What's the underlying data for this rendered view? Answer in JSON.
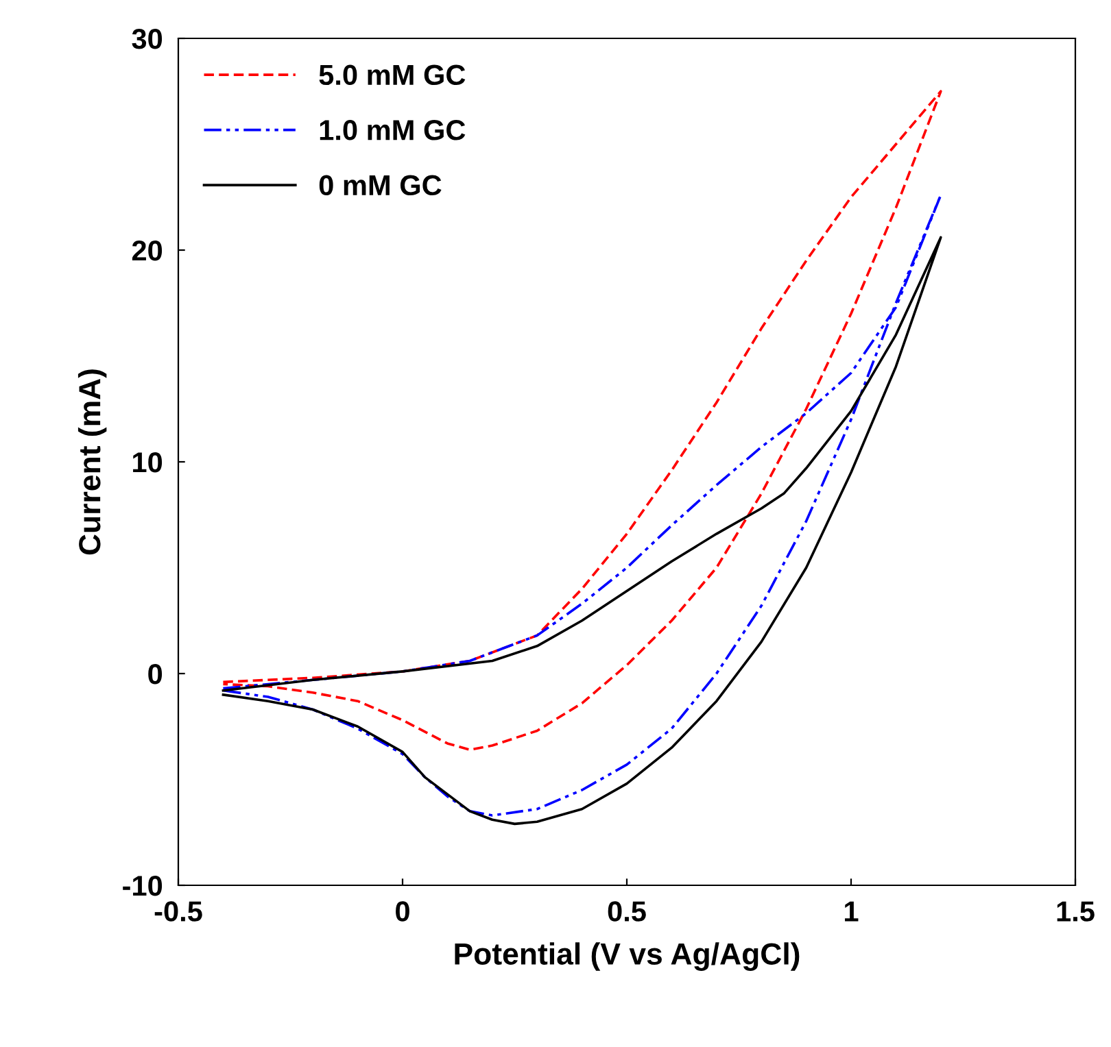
{
  "chart_data": {
    "type": "line",
    "xlabel": "Potential (V vs Ag/AgCl)",
    "ylabel": "Current (mA)",
    "xlim": [
      -0.5,
      1.5
    ],
    "xticks": [
      -0.5,
      0,
      0.5,
      1,
      1.5
    ],
    "ylim": [
      -10,
      30
    ],
    "yticks": [
      -10,
      0,
      10,
      20,
      30
    ],
    "grid": false,
    "legend": "top left",
    "marker": "none",
    "series": [
      {
        "name": "5.0 mM GC",
        "color": "#ff0000",
        "line_style": "dashed",
        "x": [
          -0.4,
          -0.2,
          0,
          0.15,
          0.3,
          0.4,
          0.5,
          0.6,
          0.7,
          0.8,
          0.9,
          1.0,
          1.1,
          1.2,
          1.1,
          1.0,
          0.9,
          0.8,
          0.7,
          0.6,
          0.5,
          0.4,
          0.3,
          0.2,
          0.15,
          0.1,
          0.0,
          -0.1,
          -0.2,
          -0.3,
          -0.4
        ],
        "values": [
          -0.4,
          -0.2,
          0.1,
          0.6,
          1.8,
          4.0,
          6.6,
          9.6,
          12.8,
          16.3,
          19.5,
          22.5,
          25.0,
          27.5,
          22,
          17,
          12.5,
          8.5,
          5.0,
          2.5,
          0.4,
          -1.4,
          -2.7,
          -3.4,
          -3.6,
          -3.3,
          -2.2,
          -1.3,
          -0.9,
          -0.6,
          -0.5
        ]
      },
      {
        "name": "1.0 mM GC",
        "color": "#0000ff",
        "line_style": "dashdot",
        "x": [
          -0.4,
          -0.2,
          0,
          0.15,
          0.3,
          0.4,
          0.5,
          0.6,
          0.7,
          0.8,
          0.9,
          1.0,
          1.1,
          1.2,
          1.1,
          1.0,
          0.9,
          0.8,
          0.7,
          0.6,
          0.5,
          0.4,
          0.3,
          0.2,
          0.15,
          0.1,
          0.05,
          0,
          -0.1,
          -0.2,
          -0.3,
          -0.4
        ],
        "values": [
          -0.7,
          -0.3,
          0.1,
          0.6,
          1.8,
          3.3,
          5.0,
          7.0,
          8.9,
          10.7,
          12.3,
          14.2,
          17.3,
          22.6,
          17.5,
          12,
          7.2,
          3.2,
          0,
          -2.6,
          -4.3,
          -5.5,
          -6.4,
          -6.7,
          -6.5,
          -5.8,
          -4.9,
          -3.8,
          -2.6,
          -1.7,
          -1.1,
          -0.8
        ]
      },
      {
        "name": "0 mM GC",
        "color": "#000000",
        "line_style": "solid",
        "x": [
          -0.4,
          -0.2,
          0,
          0.2,
          0.3,
          0.4,
          0.5,
          0.6,
          0.7,
          0.8,
          0.85,
          0.9,
          1.0,
          1.1,
          1.2,
          1.1,
          1.0,
          0.9,
          0.8,
          0.7,
          0.6,
          0.5,
          0.4,
          0.3,
          0.25,
          0.2,
          0.15,
          0.1,
          0.05,
          0,
          -0.1,
          -0.2,
          -0.3,
          -0.4
        ],
        "values": [
          -0.8,
          -0.3,
          0.1,
          0.6,
          1.3,
          2.5,
          3.9,
          5.3,
          6.6,
          7.8,
          8.5,
          9.7,
          12.4,
          16,
          20.6,
          14.5,
          9.5,
          5.0,
          1.5,
          -1.3,
          -3.5,
          -5.2,
          -6.4,
          -7.0,
          -7.1,
          -6.9,
          -6.5,
          -5.7,
          -4.9,
          -3.7,
          -2.5,
          -1.7,
          -1.3,
          -1.0
        ]
      }
    ]
  }
}
